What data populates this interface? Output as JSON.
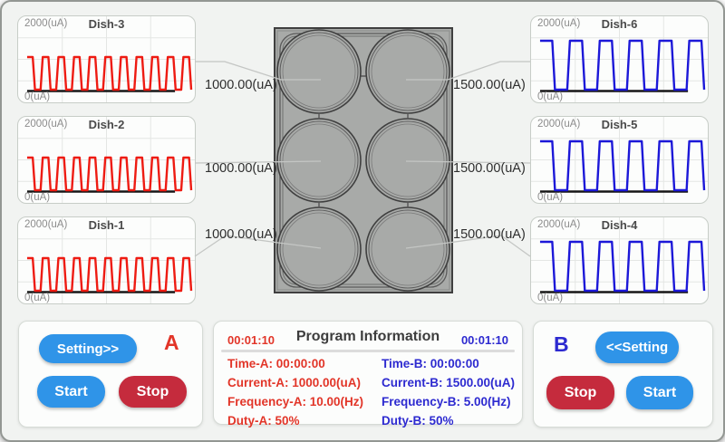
{
  "theme": {
    "background": "#f1f3f1",
    "accent_blue": "#2f94e8",
    "accent_red": "#c52b3d",
    "wave_red": "#ee1b12",
    "wave_blue": "#1c18d8",
    "text_red": "#e23528",
    "text_blue": "#2d2ad0",
    "plate_gray": "#a8aaa8",
    "grid_gray": "#e4e6e4",
    "axis_black": "#161616",
    "connector_gray": "#c4c6c4"
  },
  "charts": {
    "y_max_label": "2000(uA)",
    "y_min_label": "0(uA)",
    "dishes": [
      {
        "title": "Dish-3",
        "side": "left",
        "row": 0,
        "color": "red",
        "pulses": 10,
        "current_ua": 1000,
        "y_max_ua": 2000,
        "frequency_hz": 10,
        "duty_pct": 50
      },
      {
        "title": "Dish-2",
        "side": "left",
        "row": 1,
        "color": "red",
        "pulses": 10,
        "current_ua": 1000,
        "y_max_ua": 2000,
        "frequency_hz": 10,
        "duty_pct": 50
      },
      {
        "title": "Dish-1",
        "side": "left",
        "row": 2,
        "color": "red",
        "pulses": 10,
        "current_ua": 1000,
        "y_max_ua": 2000,
        "frequency_hz": 10,
        "duty_pct": 50
      },
      {
        "title": "Dish-6",
        "side": "right",
        "row": 0,
        "color": "blue",
        "pulses": 5,
        "current_ua": 1500,
        "y_max_ua": 2000,
        "frequency_hz": 5,
        "duty_pct": 50
      },
      {
        "title": "Dish-5",
        "side": "right",
        "row": 1,
        "color": "blue",
        "pulses": 5,
        "current_ua": 1500,
        "y_max_ua": 2000,
        "frequency_hz": 5,
        "duty_pct": 50
      },
      {
        "title": "Dish-4",
        "side": "right",
        "row": 2,
        "color": "blue",
        "pulses": 5,
        "current_ua": 1500,
        "y_max_ua": 2000,
        "frequency_hz": 5,
        "duty_pct": 50
      }
    ]
  },
  "plate": {
    "rows": 3,
    "cols": 2,
    "wells": 6
  },
  "well_labels": {
    "left": "1000.00(uA)",
    "right": "1500.00(uA)"
  },
  "program_info": {
    "title": "Program Information",
    "timer_a": "00:01:10",
    "timer_b": "00:01:10",
    "channel_a": [
      "Time-A: 00:00:00",
      "Current-A: 1000.00(uA)",
      "Frequency-A: 10.00(Hz)",
      "Duty-A: 50%"
    ],
    "channel_b": [
      "Time-B: 00:00:00",
      "Current-B: 1500.00(uA)",
      "Frequency-B: 5.00(Hz)",
      "Duty-B: 50%"
    ]
  },
  "controls": {
    "a": {
      "label": "A",
      "setting": "Setting>>",
      "start": "Start",
      "stop": "Stop"
    },
    "b": {
      "label": "B",
      "setting": "<<Setting",
      "start": "Start",
      "stop": "Stop"
    }
  }
}
